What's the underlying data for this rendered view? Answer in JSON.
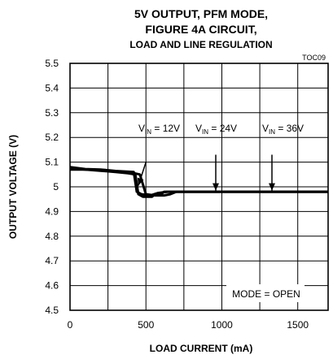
{
  "chart_data": {
    "type": "line",
    "title_lines": [
      "5V OUTPUT, PFM MODE,",
      "FIGURE 4A CIRCUIT,",
      "LOAD AND LINE REGULATION"
    ],
    "figure_code": "TOC09",
    "xlabel": "LOAD CURRENT (mA)",
    "ylabel": "OUTPUT VOLTAGE (V)",
    "xlim": [
      0,
      1700
    ],
    "ylim": [
      4.5,
      5.5
    ],
    "x_ticks": [
      0,
      500,
      1000,
      1500
    ],
    "x_tick_labels": [
      "0",
      "500",
      "1000",
      "1500"
    ],
    "y_ticks": [
      4.5,
      4.6,
      4.7,
      4.8,
      4.9,
      5.0,
      5.1,
      5.2,
      5.3,
      5.4,
      5.5
    ],
    "y_tick_labels": [
      "4.5",
      "4.6",
      "4.7",
      "4.8",
      "4.9",
      "5",
      "5.1",
      "5.2",
      "5.3",
      "5.4",
      "5.5"
    ],
    "grid": true,
    "annotation_box": "MODE = OPEN",
    "series": [
      {
        "label_main": "V",
        "label_sub": "IN",
        "label_rest": " = 12V",
        "points": [
          [
            0,
            5.07
          ],
          [
            100,
            5.07
          ],
          [
            200,
            5.065
          ],
          [
            300,
            5.06
          ],
          [
            380,
            5.055
          ],
          [
            430,
            5.05
          ],
          [
            450,
            4.97
          ],
          [
            480,
            4.96
          ],
          [
            540,
            4.96
          ],
          [
            560,
            4.97
          ],
          [
            600,
            4.97
          ],
          [
            620,
            4.98
          ],
          [
            1700,
            4.98
          ]
        ]
      },
      {
        "label_main": "V",
        "label_sub": "IN",
        "label_rest": " = 24V",
        "points": [
          [
            0,
            5.075
          ],
          [
            100,
            5.07
          ],
          [
            200,
            5.068
          ],
          [
            300,
            5.062
          ],
          [
            400,
            5.058
          ],
          [
            460,
            5.05
          ],
          [
            500,
            4.97
          ],
          [
            560,
            4.965
          ],
          [
            620,
            4.965
          ],
          [
            660,
            4.97
          ],
          [
            700,
            4.98
          ],
          [
            1700,
            4.98
          ]
        ]
      },
      {
        "label_main": "V",
        "label_sub": "IN",
        "label_rest": " = 36V",
        "points": [
          [
            0,
            5.08
          ],
          [
            100,
            5.072
          ],
          [
            200,
            5.07
          ],
          [
            300,
            5.064
          ],
          [
            420,
            5.06
          ],
          [
            440,
            4.98
          ],
          [
            470,
            4.97
          ],
          [
            530,
            4.965
          ],
          [
            580,
            4.975
          ],
          [
            640,
            4.98
          ],
          [
            1700,
            4.98
          ]
        ]
      }
    ],
    "arrows": [
      {
        "from": [
          500,
          5.1
        ],
        "to": [
          450,
          5.005
        ]
      },
      {
        "from": [
          960,
          5.13
        ],
        "to": [
          960,
          4.985
        ]
      },
      {
        "from": [
          1330,
          5.13
        ],
        "to": [
          1330,
          4.985
        ]
      }
    ]
  }
}
